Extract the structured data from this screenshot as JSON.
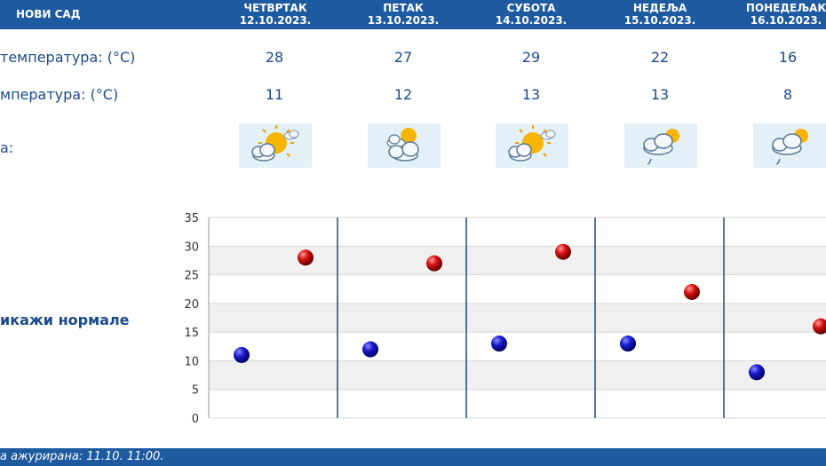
{
  "header": {
    "city": "НОВИ САД",
    "days": [
      {
        "name": "ЧЕТВРТАК",
        "date": "12.10.2023."
      },
      {
        "name": "ПЕТАК",
        "date": "13.10.2023."
      },
      {
        "name": "СУБОТА",
        "date": "14.10.2023."
      },
      {
        "name": "НЕДЕЉА",
        "date": "15.10.2023."
      },
      {
        "name": "ПОНЕДЕЉАК",
        "date": "16.10.2023."
      }
    ]
  },
  "rows": {
    "max_label": "температура: (°C)",
    "min_label": "мпература: (°C)",
    "icon_label": "а:",
    "max_values": [
      "28",
      "27",
      "29",
      "22",
      "16"
    ],
    "min_values": [
      "11",
      "12",
      "13",
      "13",
      "8"
    ],
    "icons": [
      "sun-cloud-icon",
      "cloud-sun-icon",
      "sun-cloud-icon",
      "cloud-sun-rain-icon",
      "cloud-sun-rain-icon"
    ]
  },
  "normals_toggle": "икажи нормале",
  "chart_data": {
    "type": "scatter",
    "y_ticks": [
      "35",
      "30",
      "25",
      "20",
      "15",
      "10",
      "5",
      "0"
    ],
    "ylim": [
      0,
      35
    ],
    "series": [
      {
        "values": [
          11,
          12,
          13,
          13,
          8
        ],
        "color": "#1010c0"
      },
      {
        "values": [
          28,
          27,
          29,
          22,
          16
        ],
        "color": "#d01010"
      }
    ],
    "grid": true
  },
  "footer": {
    "updated": "а ажурирана:  11.10. 11:00."
  }
}
